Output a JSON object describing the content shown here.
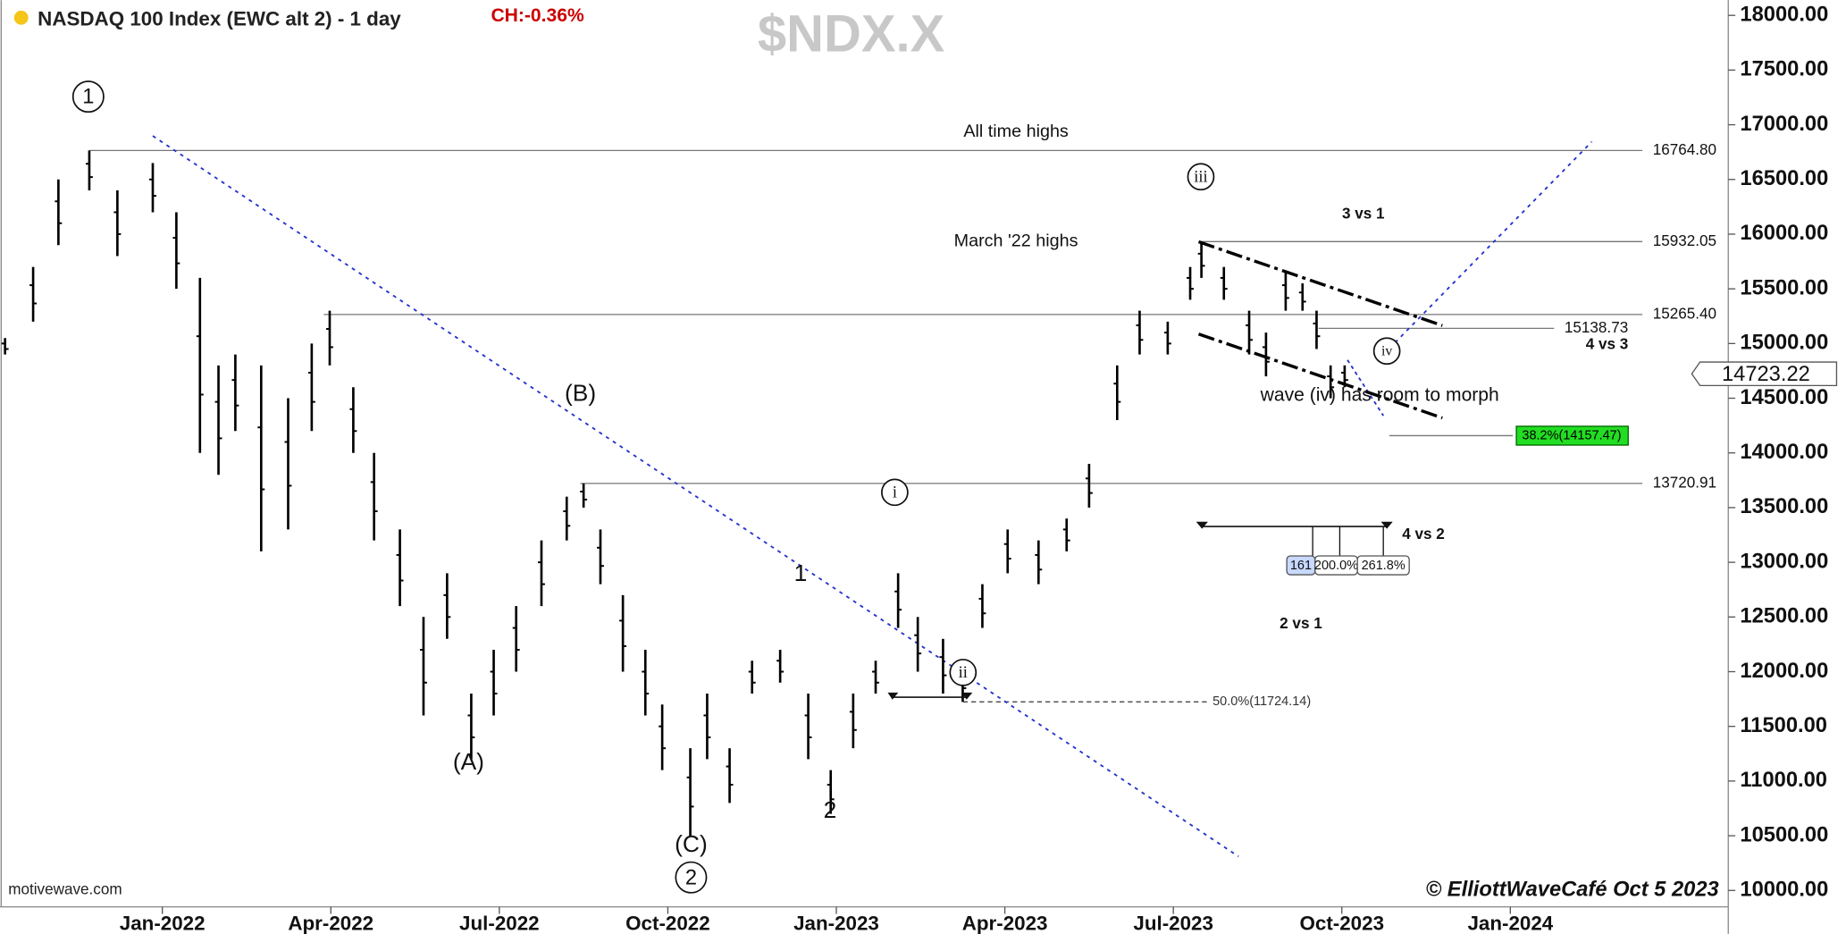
{
  "chart_data": {
    "type": "ohlc",
    "title": "NASDAQ 100 Index (EWC alt 2) - 1 day",
    "change": "CH:-0.36%",
    "symbol": "$NDX.X",
    "source": "motivewave.com",
    "copyright": "© ElliottWaveCafé Oct 5 2023",
    "color": "#000000",
    "xlim": [
      -2.89,
      27.88
    ],
    "xticks": [
      {
        "value": 0,
        "label": "Jan-2022"
      },
      {
        "value": 3,
        "label": "Apr-2022"
      },
      {
        "value": 6,
        "label": "Jul-2022"
      },
      {
        "value": 9,
        "label": "Oct-2022"
      },
      {
        "value": 12,
        "label": "Jan-2023"
      },
      {
        "value": 15,
        "label": "Apr-2023"
      },
      {
        "value": 18,
        "label": "Jul-2023"
      },
      {
        "value": 21,
        "label": "Oct-2023"
      },
      {
        "value": 24,
        "label": "Jan-2024"
      }
    ],
    "ylim": [
      9850,
      18140
    ],
    "yticks": [
      {
        "value": 10000,
        "label": "10000.00"
      },
      {
        "value": 10500,
        "label": "10500.00"
      },
      {
        "value": 11000,
        "label": "11000.00"
      },
      {
        "value": 11500,
        "label": "11500.00"
      },
      {
        "value": 12000,
        "label": "12000.00"
      },
      {
        "value": 12500,
        "label": "12500.00"
      },
      {
        "value": 13000,
        "label": "13000.00"
      },
      {
        "value": 13500,
        "label": "13500.00"
      },
      {
        "value": 14000,
        "label": "14000.00"
      },
      {
        "value": 14500,
        "label": "14500.00"
      },
      {
        "value": 15000,
        "label": "15000.00"
      },
      {
        "value": 15500,
        "label": "15500.00"
      },
      {
        "value": 16000,
        "label": "16000.00"
      },
      {
        "value": 16500,
        "label": "16500.00"
      },
      {
        "value": 17000,
        "label": "17000.00"
      },
      {
        "value": 17500,
        "label": "17500.00"
      },
      {
        "value": 18000,
        "label": "18000.00"
      }
    ],
    "x": [
      -2.8,
      -2.3,
      -1.85,
      -1.3,
      -0.8,
      -0.17,
      0.25,
      0.67,
      1.0,
      1.3,
      1.76,
      2.24,
      2.66,
      2.98,
      3.4,
      3.77,
      4.23,
      4.65,
      5.07,
      5.5,
      5.9,
      6.3,
      6.75,
      7.2,
      7.5,
      7.8,
      8.2,
      8.6,
      8.9,
      9.4,
      9.7,
      10.1,
      10.5,
      11.0,
      11.5,
      11.9,
      12.3,
      12.7,
      13.1,
      13.45,
      13.9,
      14.25,
      14.6,
      15.05,
      15.6,
      16.1,
      16.5,
      17.0,
      17.4,
      17.9,
      18.3,
      18.5,
      18.9,
      19.35,
      19.65,
      20.0,
      20.3,
      20.55,
      20.8,
      21.05
    ],
    "high": [
      15050,
      15700,
      16500,
      16765,
      16400,
      16650,
      16200,
      15600,
      14800,
      14900,
      14800,
      14500,
      15000,
      15300,
      14600,
      14000,
      13300,
      12500,
      12900,
      11800,
      12200,
      12600,
      13200,
      13600,
      13720,
      13300,
      12700,
      12200,
      11700,
      11300,
      11800,
      11300,
      12100,
      12200,
      11800,
      11100,
      11800,
      12100,
      12900,
      12500,
      12300,
      12100,
      12800,
      13300,
      13200,
      13400,
      13900,
      14800,
      15300,
      15200,
      15700,
      15932,
      15700,
      15300,
      15100,
      15650,
      15550,
      15300,
      14800,
      14800
    ],
    "low": [
      14900,
      15200,
      15900,
      16400,
      15800,
      16200,
      15500,
      14000,
      13800,
      14200,
      13100,
      13300,
      14200,
      14800,
      14000,
      13200,
      12600,
      11600,
      12300,
      11200,
      11600,
      12000,
      12600,
      13200,
      13500,
      12800,
      12000,
      11600,
      11100,
      10500,
      11200,
      10800,
      11800,
      11900,
      11200,
      10700,
      11300,
      11800,
      12400,
      12000,
      11800,
      11724,
      12400,
      12900,
      12800,
      13100,
      13500,
      14300,
      14900,
      14900,
      15400,
      15600,
      15400,
      14900,
      14700,
      15300,
      15300,
      14950,
      14500,
      14600
    ],
    "last": {
      "value": 14723.22,
      "label": "14723.22"
    },
    "levels": [
      {
        "value": 16764.8,
        "label": "16764.80"
      },
      {
        "value": 15932.05,
        "label": "15932.05"
      },
      {
        "value": 15265.4,
        "label": "15265.40"
      },
      {
        "value": 13720.91,
        "label": "13720.91"
      },
      {
        "value": 15138.73,
        "label": "15138.73"
      },
      {
        "value": 14157.47,
        "label": "38.2%(14157.47)"
      },
      {
        "value": 11724.14,
        "label": "50.0%(11724.14)"
      }
    ],
    "trendlines": [
      {
        "x": [
          -0.17,
          19.16
        ],
        "y": [
          16898,
          10311
        ],
        "color": "#2233cc"
      },
      {
        "x": [
          21.64,
          25.45
        ],
        "y": [
          14847,
          16845
        ],
        "color": "#2233cc"
      },
      {
        "x": [
          21.1,
          21.74
        ],
        "y": [
          14850,
          14340
        ],
        "color": "#2233cc"
      },
      {
        "x": [
          18.45,
          22.79
        ],
        "y": [
          15930,
          15164
        ],
        "color": "#000000"
      },
      {
        "x": [
          18.45,
          22.79
        ],
        "y": [
          15087,
          14320
        ],
        "color": "#000000"
      }
    ],
    "annotations": [
      "All time highs",
      "March '22 highs",
      "wave (iv) has room to morph",
      "3 vs 1",
      "4 vs 3",
      "4 vs 2",
      "2 vs 1"
    ],
    "waves": [
      "1",
      "(B)",
      "(A)",
      "(C)",
      "2",
      "1",
      "2",
      "i",
      "ii",
      "iii",
      "iv"
    ],
    "fib_labels": [
      "161",
      "200.0%",
      "261.8%"
    ]
  }
}
